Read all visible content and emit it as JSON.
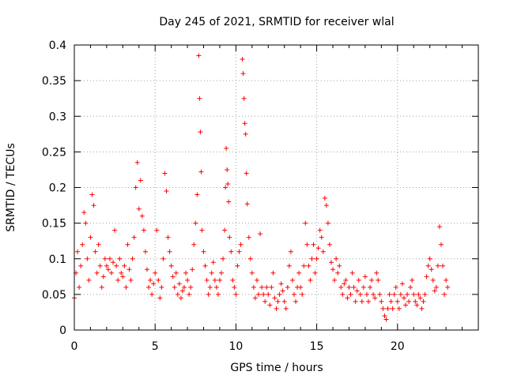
{
  "chart_data": {
    "type": "scatter",
    "title": "Day 245 of 2021, SRMTID for receiver wlal",
    "xlabel": "GPS time / hours",
    "ylabel": "SRMTID / TECUs",
    "xlim": [
      0,
      25
    ],
    "ylim": [
      0,
      0.4
    ],
    "xticks": [
      0,
      5,
      10,
      15,
      20
    ],
    "xtick_labels": [
      "0",
      "5",
      "10",
      "15",
      "20"
    ],
    "yticks": [
      0,
      0.05,
      0.1,
      0.15,
      0.2,
      0.25,
      0.3,
      0.35,
      0.4
    ],
    "ytick_labels": [
      "0",
      "0.05",
      "0.1",
      "0.15",
      "0.2",
      "0.25",
      "0.3",
      "0.35",
      "0.4"
    ],
    "grid": true,
    "marker": "plus",
    "color": "#ff0000",
    "series": [
      {
        "name": "SRMTID",
        "points": [
          [
            0.0,
            0.045
          ],
          [
            0.1,
            0.08
          ],
          [
            0.2,
            0.11
          ],
          [
            0.3,
            0.06
          ],
          [
            0.4,
            0.09
          ],
          [
            0.5,
            0.12
          ],
          [
            0.6,
            0.165
          ],
          [
            0.7,
            0.15
          ],
          [
            0.8,
            0.1
          ],
          [
            0.9,
            0.07
          ],
          [
            1.0,
            0.13
          ],
          [
            1.1,
            0.19
          ],
          [
            1.2,
            0.175
          ],
          [
            1.3,
            0.11
          ],
          [
            1.4,
            0.08
          ],
          [
            1.5,
            0.12
          ],
          [
            1.6,
            0.09
          ],
          [
            1.7,
            0.06
          ],
          [
            1.8,
            0.075
          ],
          [
            1.9,
            0.1
          ],
          [
            2.0,
            0.09
          ],
          [
            2.1,
            0.085
          ],
          [
            2.2,
            0.1
          ],
          [
            2.3,
            0.08
          ],
          [
            2.4,
            0.095
          ],
          [
            2.5,
            0.14
          ],
          [
            2.6,
            0.09
          ],
          [
            2.7,
            0.07
          ],
          [
            2.8,
            0.1
          ],
          [
            2.9,
            0.08
          ],
          [
            3.0,
            0.075
          ],
          [
            3.1,
            0.09
          ],
          [
            3.2,
            0.06
          ],
          [
            3.3,
            0.12
          ],
          [
            3.4,
            0.085
          ],
          [
            3.5,
            0.07
          ],
          [
            3.6,
            0.1
          ],
          [
            3.7,
            0.13
          ],
          [
            3.8,
            0.2
          ],
          [
            3.9,
            0.235
          ],
          [
            4.0,
            0.17
          ],
          [
            4.1,
            0.21
          ],
          [
            4.2,
            0.16
          ],
          [
            4.3,
            0.14
          ],
          [
            4.4,
            0.11
          ],
          [
            4.5,
            0.085
          ],
          [
            4.6,
            0.06
          ],
          [
            4.7,
            0.07
          ],
          [
            4.8,
            0.05
          ],
          [
            4.9,
            0.065
          ],
          [
            5.0,
            0.08
          ],
          [
            5.1,
            0.14
          ],
          [
            5.2,
            0.07
          ],
          [
            5.3,
            0.045
          ],
          [
            5.4,
            0.06
          ],
          [
            5.5,
            0.1
          ],
          [
            5.6,
            0.22
          ],
          [
            5.7,
            0.195
          ],
          [
            5.8,
            0.13
          ],
          [
            5.9,
            0.11
          ],
          [
            6.0,
            0.09
          ],
          [
            6.1,
            0.075
          ],
          [
            6.2,
            0.06
          ],
          [
            6.3,
            0.08
          ],
          [
            6.4,
            0.05
          ],
          [
            6.5,
            0.065
          ],
          [
            6.6,
            0.045
          ],
          [
            6.7,
            0.055
          ],
          [
            6.8,
            0.06
          ],
          [
            6.9,
            0.08
          ],
          [
            7.0,
            0.07
          ],
          [
            7.1,
            0.05
          ],
          [
            7.2,
            0.06
          ],
          [
            7.3,
            0.085
          ],
          [
            7.4,
            0.12
          ],
          [
            7.5,
            0.15
          ],
          [
            7.6,
            0.19
          ],
          [
            7.7,
            0.385
          ],
          [
            7.75,
            0.325
          ],
          [
            7.8,
            0.278
          ],
          [
            7.85,
            0.222
          ],
          [
            7.9,
            0.14
          ],
          [
            8.0,
            0.11
          ],
          [
            8.1,
            0.09
          ],
          [
            8.2,
            0.07
          ],
          [
            8.3,
            0.05
          ],
          [
            8.4,
            0.06
          ],
          [
            8.5,
            0.08
          ],
          [
            8.6,
            0.095
          ],
          [
            8.7,
            0.07
          ],
          [
            8.8,
            0.06
          ],
          [
            8.9,
            0.05
          ],
          [
            9.0,
            0.07
          ],
          [
            9.1,
            0.08
          ],
          [
            9.2,
            0.1
          ],
          [
            9.3,
            0.14
          ],
          [
            9.35,
            0.2
          ],
          [
            9.4,
            0.255
          ],
          [
            9.45,
            0.225
          ],
          [
            9.5,
            0.205
          ],
          [
            9.55,
            0.18
          ],
          [
            9.6,
            0.13
          ],
          [
            9.7,
            0.11
          ],
          [
            9.8,
            0.07
          ],
          [
            9.9,
            0.06
          ],
          [
            10.0,
            0.05
          ],
          [
            10.1,
            0.09
          ],
          [
            10.2,
            0.11
          ],
          [
            10.3,
            0.12
          ],
          [
            10.4,
            0.38
          ],
          [
            10.45,
            0.36
          ],
          [
            10.5,
            0.325
          ],
          [
            10.55,
            0.29
          ],
          [
            10.6,
            0.275
          ],
          [
            10.65,
            0.22
          ],
          [
            10.7,
            0.177
          ],
          [
            10.8,
            0.13
          ],
          [
            10.9,
            0.1
          ],
          [
            11.0,
            0.08
          ],
          [
            11.1,
            0.06
          ],
          [
            11.2,
            0.045
          ],
          [
            11.3,
            0.07
          ],
          [
            11.4,
            0.05
          ],
          [
            11.5,
            0.135
          ],
          [
            11.6,
            0.06
          ],
          [
            11.7,
            0.05
          ],
          [
            11.8,
            0.04
          ],
          [
            11.9,
            0.06
          ],
          [
            12.0,
            0.05
          ],
          [
            12.1,
            0.035
          ],
          [
            12.2,
            0.06
          ],
          [
            12.3,
            0.08
          ],
          [
            12.4,
            0.045
          ],
          [
            12.5,
            0.03
          ],
          [
            12.6,
            0.04
          ],
          [
            12.7,
            0.05
          ],
          [
            12.8,
            0.065
          ],
          [
            12.9,
            0.055
          ],
          [
            13.0,
            0.04
          ],
          [
            13.1,
            0.03
          ],
          [
            13.2,
            0.06
          ],
          [
            13.3,
            0.09
          ],
          [
            13.4,
            0.11
          ],
          [
            13.5,
            0.07
          ],
          [
            13.6,
            0.05
          ],
          [
            13.7,
            0.04
          ],
          [
            13.8,
            0.06
          ],
          [
            13.9,
            0.08
          ],
          [
            14.0,
            0.06
          ],
          [
            14.1,
            0.05
          ],
          [
            14.2,
            0.09
          ],
          [
            14.3,
            0.15
          ],
          [
            14.4,
            0.12
          ],
          [
            14.5,
            0.09
          ],
          [
            14.6,
            0.07
          ],
          [
            14.7,
            0.1
          ],
          [
            14.8,
            0.12
          ],
          [
            14.9,
            0.08
          ],
          [
            15.0,
            0.1
          ],
          [
            15.1,
            0.115
          ],
          [
            15.2,
            0.14
          ],
          [
            15.3,
            0.13
          ],
          [
            15.4,
            0.11
          ],
          [
            15.5,
            0.185
          ],
          [
            15.6,
            0.175
          ],
          [
            15.7,
            0.15
          ],
          [
            15.8,
            0.12
          ],
          [
            15.9,
            0.095
          ],
          [
            16.0,
            0.085
          ],
          [
            16.1,
            0.07
          ],
          [
            16.2,
            0.1
          ],
          [
            16.3,
            0.08
          ],
          [
            16.4,
            0.09
          ],
          [
            16.5,
            0.06
          ],
          [
            16.6,
            0.05
          ],
          [
            16.7,
            0.065
          ],
          [
            16.8,
            0.07
          ],
          [
            16.9,
            0.045
          ],
          [
            17.0,
            0.06
          ],
          [
            17.1,
            0.05
          ],
          [
            17.2,
            0.08
          ],
          [
            17.3,
            0.06
          ],
          [
            17.4,
            0.04
          ],
          [
            17.5,
            0.055
          ],
          [
            17.6,
            0.07
          ],
          [
            17.7,
            0.05
          ],
          [
            17.8,
            0.04
          ],
          [
            17.9,
            0.06
          ],
          [
            18.0,
            0.075
          ],
          [
            18.1,
            0.05
          ],
          [
            18.2,
            0.04
          ],
          [
            18.3,
            0.06
          ],
          [
            18.4,
            0.07
          ],
          [
            18.5,
            0.05
          ],
          [
            18.6,
            0.045
          ],
          [
            18.7,
            0.08
          ],
          [
            18.8,
            0.07
          ],
          [
            18.9,
            0.05
          ],
          [
            19.0,
            0.04
          ],
          [
            19.1,
            0.03
          ],
          [
            19.2,
            0.02
          ],
          [
            19.3,
            0.015
          ],
          [
            19.4,
            0.03
          ],
          [
            19.5,
            0.05
          ],
          [
            19.6,
            0.04
          ],
          [
            19.7,
            0.03
          ],
          [
            19.8,
            0.05
          ],
          [
            19.9,
            0.06
          ],
          [
            20.0,
            0.04
          ],
          [
            20.1,
            0.03
          ],
          [
            20.2,
            0.05
          ],
          [
            20.3,
            0.065
          ],
          [
            20.4,
            0.045
          ],
          [
            20.5,
            0.035
          ],
          [
            20.6,
            0.05
          ],
          [
            20.7,
            0.04
          ],
          [
            20.8,
            0.06
          ],
          [
            20.9,
            0.07
          ],
          [
            21.0,
            0.05
          ],
          [
            21.1,
            0.04
          ],
          [
            21.2,
            0.035
          ],
          [
            21.3,
            0.05
          ],
          [
            21.4,
            0.045
          ],
          [
            21.5,
            0.03
          ],
          [
            21.6,
            0.04
          ],
          [
            21.7,
            0.05
          ],
          [
            21.8,
            0.075
          ],
          [
            21.9,
            0.09
          ],
          [
            22.0,
            0.1
          ],
          [
            22.1,
            0.085
          ],
          [
            22.2,
            0.07
          ],
          [
            22.3,
            0.055
          ],
          [
            22.4,
            0.06
          ],
          [
            22.5,
            0.09
          ],
          [
            22.6,
            0.145
          ],
          [
            22.7,
            0.12
          ],
          [
            22.8,
            0.09
          ],
          [
            22.9,
            0.05
          ],
          [
            23.0,
            0.07
          ],
          [
            23.1,
            0.06
          ]
        ]
      }
    ]
  }
}
